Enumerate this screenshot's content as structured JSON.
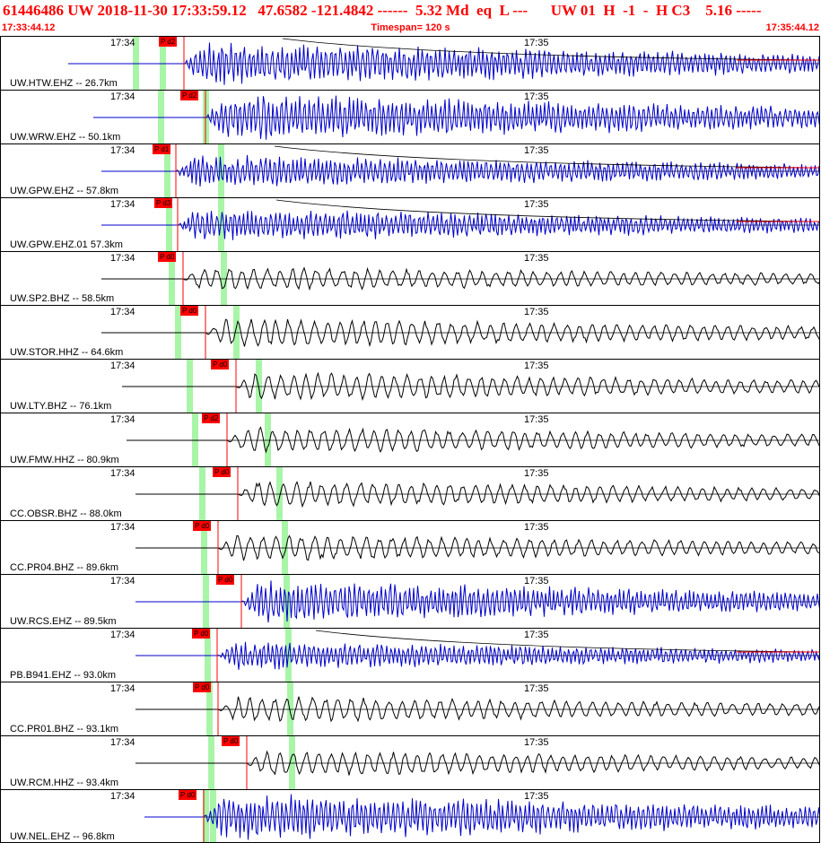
{
  "header": {
    "title": "61446486 UW 2018-11-30 17:33:59.12   47.6582 -121.4842 ------  5.32 Md  eq  L ---      UW 01  H  -1  -  H C3    5.16 -----",
    "start_time": "17:33:44.12",
    "timespan": "Timespan= 120 s",
    "end_time": "17:35:44.12"
  },
  "tick_labels": {
    "first": "17:34",
    "second": "17:35"
  },
  "colors": {
    "blue_trace": "#0000cc",
    "black_trace": "#000000",
    "pick": "#ff0000",
    "window": "#a8f5a8"
  },
  "traces": [
    {
      "label": "UW.HTW.EHZ -- 26.7km",
      "pick": "P d2",
      "color": "blue",
      "tail": "red",
      "amplitude": 0.9
    },
    {
      "label": "UW.WRW.EHZ -- 50.1km",
      "pick": "P d2",
      "color": "blue",
      "tail": "none",
      "amplitude": 1.0
    },
    {
      "label": "UW.GPW.EHZ -- 57.8km",
      "pick": "P d1",
      "color": "blue",
      "tail": "red",
      "amplitude": 0.7
    },
    {
      "label": "UW.GPW.EHZ.01 57.3km",
      "pick": "P d3",
      "color": "blue",
      "tail": "red",
      "amplitude": 0.7
    },
    {
      "label": "UW.SP2.BHZ -- 58.5km",
      "pick": "P d0",
      "color": "black",
      "tail": "none",
      "amplitude": 0.5
    },
    {
      "label": "UW.STOR.HHZ -- 64.6km",
      "pick": "P d0",
      "color": "black",
      "tail": "none",
      "amplitude": 0.6
    },
    {
      "label": "UW.LTY.BHZ -- 76.1km",
      "pick": "P d0",
      "color": "black",
      "tail": "none",
      "amplitude": 0.6
    },
    {
      "label": "UW.FMW.HHZ -- 80.9km",
      "pick": "P d2",
      "color": "black",
      "tail": "none",
      "amplitude": 0.55
    },
    {
      "label": "CC.OBSR.BHZ -- 88.0km",
      "pick": "P d0",
      "color": "black",
      "tail": "none",
      "amplitude": 0.55
    },
    {
      "label": "CC.PR04.BHZ -- 89.6km",
      "pick": "P d0",
      "color": "black",
      "tail": "none",
      "amplitude": 0.55
    },
    {
      "label": "UW.RCS.EHZ -- 89.5km",
      "pick": "P d0",
      "color": "blue",
      "tail": "none",
      "amplitude": 0.9
    },
    {
      "label": "PB.B941.EHZ -- 93.0km",
      "pick": "P d0",
      "color": "blue",
      "tail": "red",
      "amplitude": 0.6
    },
    {
      "label": "CC.PR01.BHZ -- 93.1km",
      "pick": "P d0",
      "color": "black",
      "tail": "none",
      "amplitude": 0.55
    },
    {
      "label": "UW.RCM.HHZ -- 93.4km",
      "pick": "P d0",
      "color": "black",
      "tail": "none",
      "amplitude": 0.55
    },
    {
      "label": "UW.NEL.EHZ -- 96.8km",
      "pick": "P d0",
      "color": "blue",
      "tail": "none",
      "amplitude": 1.0
    }
  ]
}
